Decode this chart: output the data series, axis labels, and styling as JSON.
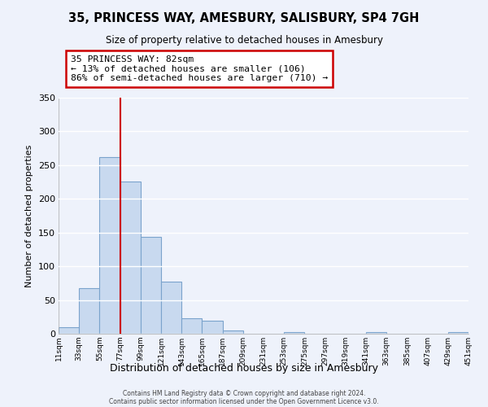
{
  "title": "35, PRINCESS WAY, AMESBURY, SALISBURY, SP4 7GH",
  "subtitle": "Size of property relative to detached houses in Amesbury",
  "xlabel": "Distribution of detached houses by size in Amesbury",
  "ylabel": "Number of detached properties",
  "bar_color": "#c8d9ef",
  "bar_edgecolor": "#7ba3cc",
  "background_color": "#eef2fb",
  "grid_color": "#ffffff",
  "annotation_box_text": "35 PRINCESS WAY: 82sqm\n← 13% of detached houses are smaller (106)\n86% of semi-detached houses are larger (710) →",
  "annotation_box_facecolor": "#ffffff",
  "annotation_box_edgecolor": "#cc0000",
  "vline_x": 77,
  "vline_color": "#cc0000",
  "bin_edges": [
    11,
    33,
    55,
    77,
    99,
    121,
    143,
    165,
    187,
    209,
    231,
    253,
    275,
    297,
    319,
    341,
    363,
    385,
    407,
    429,
    451
  ],
  "bar_heights": [
    10,
    68,
    262,
    226,
    144,
    77,
    23,
    19,
    5,
    0,
    0,
    2,
    0,
    0,
    0,
    2,
    0,
    0,
    0,
    2
  ],
  "ylim": [
    0,
    350
  ],
  "yticks": [
    0,
    50,
    100,
    150,
    200,
    250,
    300,
    350
  ],
  "xtick_labels": [
    "11sqm",
    "33sqm",
    "55sqm",
    "77sqm",
    "99sqm",
    "121sqm",
    "143sqm",
    "165sqm",
    "187sqm",
    "209sqm",
    "231sqm",
    "253sqm",
    "275sqm",
    "297sqm",
    "319sqm",
    "341sqm",
    "363sqm",
    "385sqm",
    "407sqm",
    "429sqm",
    "451sqm"
  ],
  "footer_line1": "Contains HM Land Registry data © Crown copyright and database right 2024.",
  "footer_line2": "Contains public sector information licensed under the Open Government Licence v3.0."
}
